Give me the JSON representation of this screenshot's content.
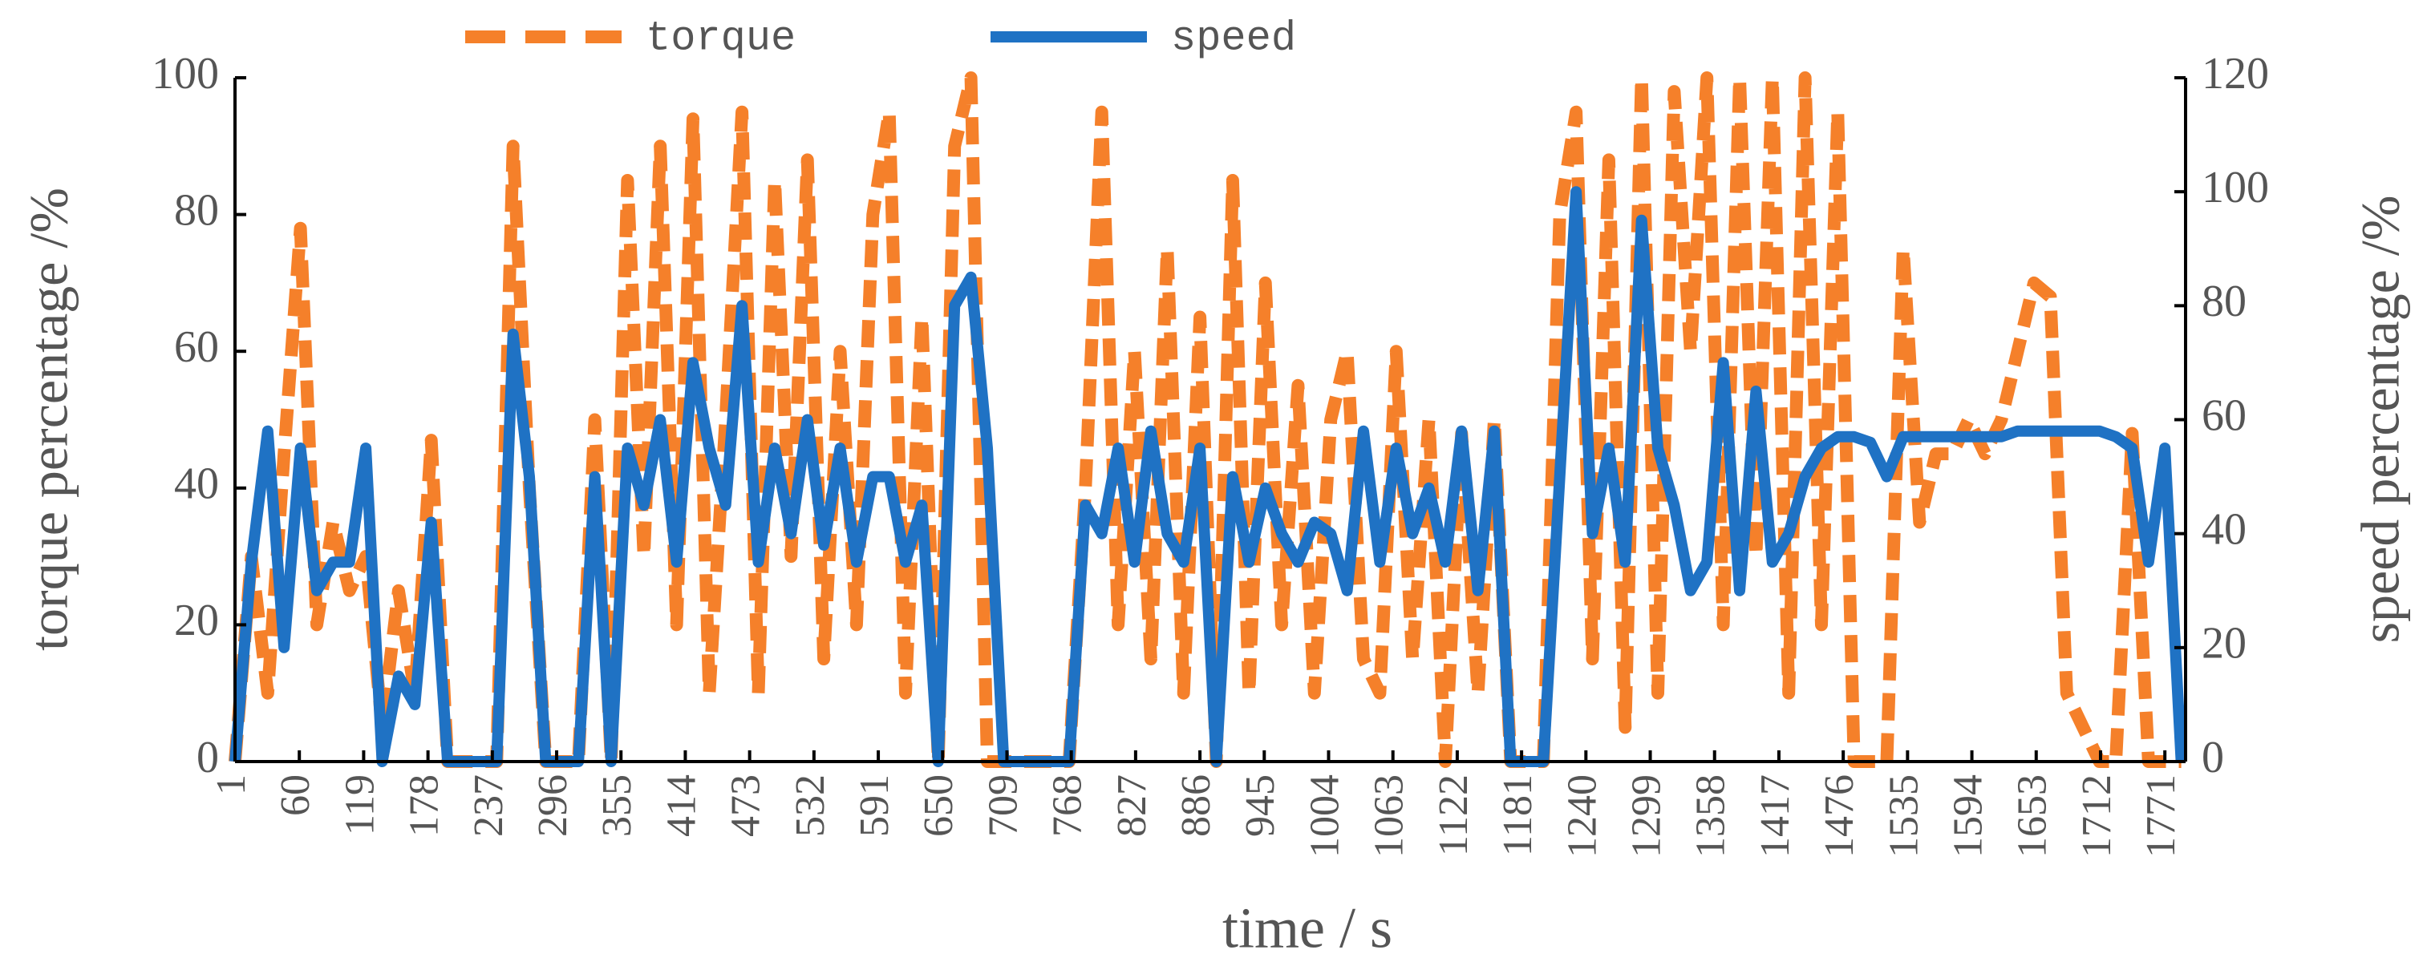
{
  "chart_data": {
    "type": "line",
    "xlabel": "time / s",
    "ylabel": "torque percentage /%",
    "y2label": "speed percentage /%",
    "x": [
      1,
      16,
      31,
      46,
      61,
      76,
      91,
      106,
      121,
      136,
      151,
      166,
      181,
      196,
      211,
      226,
      241,
      256,
      271,
      286,
      301,
      316,
      331,
      346,
      361,
      376,
      391,
      406,
      421,
      436,
      451,
      466,
      481,
      496,
      511,
      526,
      541,
      556,
      571,
      586,
      601,
      616,
      631,
      646,
      661,
      676,
      691,
      706,
      721,
      736,
      751,
      766,
      781,
      796,
      811,
      826,
      841,
      856,
      871,
      886,
      901,
      916,
      931,
      946,
      961,
      976,
      991,
      1006,
      1021,
      1036,
      1051,
      1066,
      1081,
      1096,
      1111,
      1126,
      1141,
      1156,
      1171,
      1186,
      1201,
      1216,
      1231,
      1246,
      1261,
      1276,
      1291,
      1306,
      1321,
      1336,
      1351,
      1366,
      1381,
      1396,
      1411,
      1426,
      1441,
      1456,
      1471,
      1486,
      1501,
      1516,
      1531,
      1546,
      1561,
      1576,
      1591,
      1606,
      1621,
      1636,
      1651,
      1666,
      1681,
      1696,
      1711,
      1726,
      1741,
      1756,
      1771,
      1786
    ],
    "series": [
      {
        "name": "torque",
        "color": "#f5802a",
        "dashed": true,
        "values": [
          0,
          30,
          10,
          45,
          78,
          20,
          35,
          25,
          30,
          5,
          25,
          10,
          47,
          0,
          0,
          0,
          0,
          90,
          40,
          0,
          0,
          0,
          50,
          0,
          85,
          30,
          90,
          20,
          94,
          10,
          50,
          95,
          10,
          85,
          30,
          88,
          15,
          60,
          20,
          80,
          95,
          10,
          65,
          0,
          90,
          100,
          0,
          0,
          0,
          0,
          0,
          0,
          40,
          95,
          20,
          60,
          15,
          75,
          10,
          65,
          0,
          85,
          10,
          70,
          20,
          55,
          10,
          50,
          60,
          15,
          10,
          60,
          15,
          50,
          0,
          48,
          10,
          50,
          0,
          0,
          0,
          80,
          95,
          15,
          88,
          5,
          100,
          10,
          98,
          60,
          100,
          20,
          100,
          30,
          100,
          10,
          100,
          20,
          95,
          0,
          0,
          0,
          75,
          35,
          45,
          45,
          50,
          45,
          50,
          60,
          70,
          68,
          10,
          5,
          0,
          0,
          48,
          0,
          0,
          0
        ]
      },
      {
        "name": "speed",
        "color": "#1f72c4",
        "axis": "y2",
        "values": [
          0,
          35,
          58,
          20,
          55,
          30,
          35,
          35,
          55,
          0,
          15,
          10,
          42,
          0,
          0,
          0,
          0,
          75,
          50,
          0,
          0,
          0,
          50,
          0,
          55,
          45,
          60,
          35,
          70,
          55,
          45,
          80,
          35,
          55,
          40,
          60,
          38,
          55,
          35,
          50,
          50,
          35,
          45,
          0,
          80,
          85,
          55,
          0,
          0,
          0,
          0,
          0,
          45,
          40,
          55,
          35,
          58,
          40,
          35,
          55,
          0,
          50,
          35,
          48,
          40,
          35,
          42,
          40,
          30,
          58,
          35,
          55,
          40,
          48,
          35,
          58,
          30,
          58,
          0,
          0,
          0,
          50,
          100,
          40,
          55,
          35,
          95,
          55,
          45,
          30,
          35,
          70,
          30,
          65,
          35,
          40,
          50,
          55,
          57,
          57,
          56,
          50,
          57,
          57,
          57,
          57,
          57,
          57,
          57,
          58,
          58,
          58,
          58,
          58,
          58,
          57,
          55,
          35,
          55,
          0
        ]
      }
    ],
    "xlim": [
      1,
      1790
    ],
    "xticks": [
      1,
      60,
      119,
      178,
      237,
      296,
      355,
      414,
      473,
      532,
      591,
      650,
      709,
      768,
      827,
      886,
      945,
      1004,
      1063,
      1122,
      1181,
      1240,
      1299,
      1358,
      1417,
      1476,
      1535,
      1594,
      1653,
      1712,
      1771
    ],
    "ylim": [
      0,
      100
    ],
    "yticks": [
      0,
      20,
      40,
      60,
      80,
      100
    ],
    "y2lim": [
      0,
      120
    ],
    "y2ticks": [
      0,
      20,
      40,
      60,
      80,
      100,
      120
    ]
  }
}
